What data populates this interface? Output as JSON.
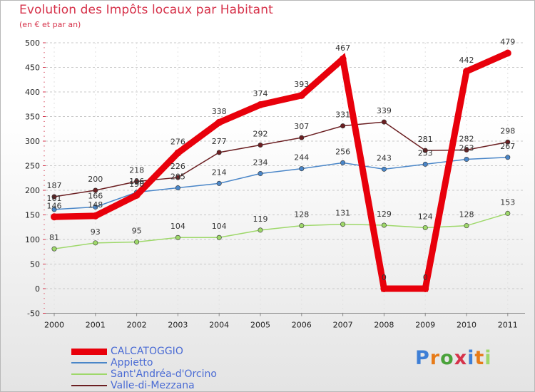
{
  "chart_data": {
    "type": "line",
    "title": "Evolution des Impôts locaux par Habitant",
    "subtitle": "(en € et par an)",
    "x": [
      "2000",
      "2001",
      "2002",
      "2003",
      "2004",
      "2005",
      "2006",
      "2007",
      "2008",
      "2009",
      "2010",
      "2011"
    ],
    "ylim": [
      -50,
      500
    ],
    "yticks": [
      -50,
      0,
      50,
      100,
      150,
      200,
      250,
      300,
      350,
      400,
      450,
      500
    ],
    "grid": "horizontal-dashed",
    "legend_position": "bottom-left",
    "series": [
      {
        "name": "Appietto",
        "color": "#4a86c8",
        "values": [
          161,
          166,
          196,
          205,
          214,
          234,
          244,
          256,
          243,
          253,
          263,
          267
        ],
        "labels": [
          "161",
          "166",
          "196",
          "205",
          "214",
          "234",
          "244",
          "256",
          "243",
          "253",
          "263",
          "267"
        ]
      },
      {
        "name": "Sant'Andréa-d'Orcino",
        "color": "#9ed86a",
        "values": [
          81,
          93,
          95,
          104,
          104,
          119,
          128,
          131,
          129,
          124,
          128,
          153
        ],
        "labels": [
          "81",
          "93",
          "95",
          "104",
          "104",
          "119",
          "128",
          "131",
          "129",
          "124",
          "128",
          "153"
        ]
      },
      {
        "name": "Valle-di-Mezzana",
        "color": "#6b1f22",
        "values": [
          187,
          200,
          218,
          226,
          277,
          292,
          307,
          331,
          339,
          281,
          282,
          298
        ],
        "labels": [
          "187",
          "200",
          "218",
          "226",
          "277",
          "292",
          "307",
          "331",
          "339",
          "281",
          "282",
          "298"
        ]
      },
      {
        "name": "CALCATOGGIO",
        "color": "#e8000b",
        "values": [
          146,
          148,
          190,
          276,
          338,
          374,
          393,
          467,
          0,
          0,
          442,
          479
        ],
        "labels": [
          "146",
          "148",
          "190",
          "276",
          "338",
          "374",
          "393",
          "467",
          "0",
          "0",
          "442",
          "479"
        ]
      }
    ]
  },
  "legend": [
    {
      "name": "CALCATOGGIO",
      "color": "#e8000b"
    },
    {
      "name": "Appietto",
      "color": "#4a86c8"
    },
    {
      "name": "Sant'Andréa-d'Orcino",
      "color": "#9ed86a"
    },
    {
      "name": "Valle-di-Mezzana",
      "color": "#6b1f22"
    }
  ],
  "logo": {
    "text": "Proxiti"
  }
}
